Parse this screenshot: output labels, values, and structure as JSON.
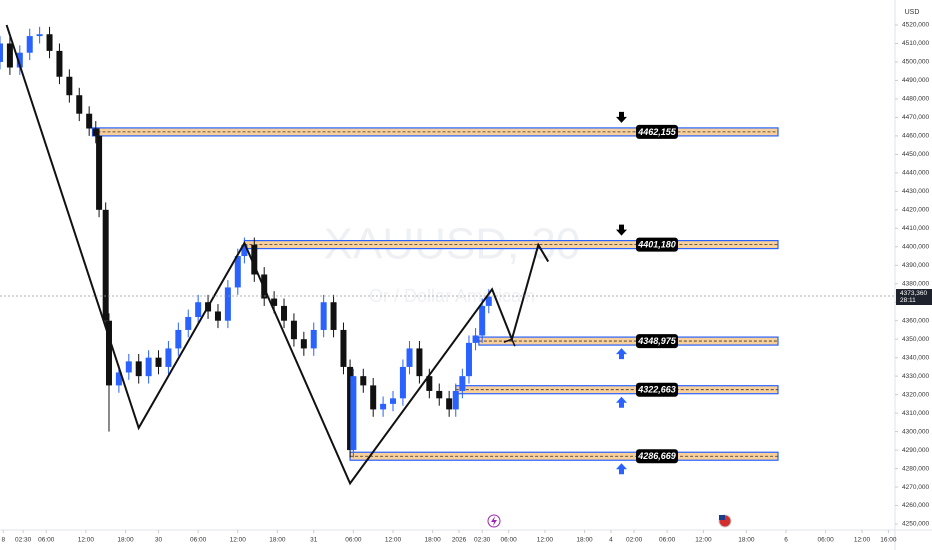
{
  "chart_data": {
    "type": "candlestick",
    "title": "XAUUSD, 30",
    "subtitle": "Or / Dollar Américain",
    "currency": "USD",
    "x": [
      0,
      3,
      6,
      9,
      12,
      15,
      18,
      21,
      24,
      27,
      29,
      30,
      32,
      33,
      36,
      39,
      42,
      45,
      48,
      51,
      54,
      57,
      60,
      63,
      66,
      69,
      72,
      74,
      77,
      80,
      83,
      86,
      89,
      92,
      95,
      98,
      101,
      104,
      106,
      107,
      110,
      113,
      116,
      119,
      122,
      124,
      127,
      130,
      133,
      136,
      138,
      140,
      142,
      144,
      146,
      148
    ],
    "open": [
      4500,
      4510,
      4497,
      4505,
      4514,
      4515,
      4506,
      4492,
      4482,
      4472,
      4464,
      4460,
      4420,
      4360,
      4325,
      4332,
      4338,
      4330,
      4340,
      4335,
      4345,
      4355,
      4362,
      4370,
      4365,
      4360,
      4378,
      4395,
      4401,
      4385,
      4372,
      4368,
      4360,
      4350,
      4345,
      4355,
      4370,
      4355,
      4335,
      4290,
      4330,
      4325,
      4312,
      4315,
      4318,
      4335,
      4345,
      4330,
      4322,
      4318,
      4312,
      4322,
      4330,
      4348,
      4352,
      4368
    ],
    "high": [
      4514,
      4514,
      4509,
      4518,
      4519,
      4519,
      4510,
      4496,
      4486,
      4476,
      4468,
      4464,
      4424,
      4364,
      4336,
      4342,
      4342,
      4344,
      4344,
      4349,
      4359,
      4366,
      4374,
      4374,
      4369,
      4382,
      4399,
      4405,
      4405,
      4389,
      4376,
      4372,
      4364,
      4354,
      4359,
      4374,
      4374,
      4359,
      4339,
      4334,
      4334,
      4329,
      4319,
      4322,
      4339,
      4349,
      4349,
      4334,
      4326,
      4322,
      4326,
      4334,
      4352,
      4356,
      4372,
      4377
    ],
    "low": [
      4496,
      4493,
      4493,
      4501,
      4510,
      4502,
      4488,
      4478,
      4468,
      4460,
      4456,
      4416,
      4356,
      4300,
      4321,
      4328,
      4326,
      4326,
      4331,
      4331,
      4341,
      4351,
      4358,
      4361,
      4356,
      4356,
      4374,
      4391,
      4381,
      4368,
      4364,
      4356,
      4346,
      4341,
      4341,
      4351,
      4351,
      4331,
      4286,
      4286,
      4321,
      4308,
      4308,
      4311,
      4314,
      4331,
      4326,
      4318,
      4314,
      4308,
      4308,
      4318,
      4326,
      4344,
      4348,
      4364
    ],
    "close": [
      4510,
      4497,
      4505,
      4514,
      4515,
      4506,
      4492,
      4482,
      4472,
      4464,
      4460,
      4420,
      4360,
      4325,
      4332,
      4338,
      4330,
      4340,
      4335,
      4345,
      4355,
      4362,
      4370,
      4365,
      4360,
      4378,
      4395,
      4401,
      4385,
      4372,
      4368,
      4360,
      4350,
      4345,
      4355,
      4370,
      4355,
      4335,
      4290,
      4330,
      4325,
      4312,
      4315,
      4318,
      4335,
      4345,
      4330,
      4322,
      4318,
      4312,
      4322,
      4330,
      4348,
      4352,
      4368,
      4373
    ],
    "up_color": "#2962ff",
    "down_color": "#111111",
    "xlim": [
      0,
      271
    ],
    "ylim": [
      4250,
      4520
    ],
    "xticks": [
      {
        "value": 1,
        "label": "8"
      },
      {
        "value": 7,
        "label": "02:30"
      },
      {
        "value": 14,
        "label": "06:00"
      },
      {
        "value": 26,
        "label": "12:00"
      },
      {
        "value": 38,
        "label": "18:00"
      },
      {
        "value": 48,
        "label": "30"
      },
      {
        "value": 60,
        "label": "06:00"
      },
      {
        "value": 72,
        "label": "12:00"
      },
      {
        "value": 84,
        "label": "18:00"
      },
      {
        "value": 95,
        "label": "31"
      },
      {
        "value": 107,
        "label": "06:00"
      },
      {
        "value": 119,
        "label": "12:00"
      },
      {
        "value": 131,
        "label": "18:00"
      },
      {
        "value": 139,
        "label": "2026"
      },
      {
        "value": 146,
        "label": "02:30"
      },
      {
        "value": 154,
        "label": "06:00"
      },
      {
        "value": 165,
        "label": "12:00"
      },
      {
        "value": 177,
        "label": "18:00"
      },
      {
        "value": 185,
        "label": "4"
      },
      {
        "value": 192,
        "label": "02:00"
      },
      {
        "value": 202,
        "label": "06:00"
      },
      {
        "value": 213,
        "label": "12:00"
      },
      {
        "value": 226,
        "label": "18:00"
      },
      {
        "value": 238,
        "label": "6"
      },
      {
        "value": 250,
        "label": "06:00"
      },
      {
        "value": 261,
        "label": "12:00"
      },
      {
        "value": 269,
        "label": "16:00"
      }
    ],
    "yticks": [
      {
        "value": 4250,
        "label": "4250,000"
      },
      {
        "value": 4260,
        "label": "4260,000"
      },
      {
        "value": 4270,
        "label": "4270,000"
      },
      {
        "value": 4280,
        "label": "4280,000"
      },
      {
        "value": 4290,
        "label": "4290,000"
      },
      {
        "value": 4300,
        "label": "4300,000"
      },
      {
        "value": 4310,
        "label": "4310,000"
      },
      {
        "value": 4320,
        "label": "4320,000"
      },
      {
        "value": 4330,
        "label": "4330,000"
      },
      {
        "value": 4340,
        "label": "4340,000"
      },
      {
        "value": 4350,
        "label": "4350,000"
      },
      {
        "value": 4360,
        "label": "4360,000"
      },
      {
        "value": 4370,
        "label": "4370,000"
      },
      {
        "value": 4380,
        "label": "4380,000"
      },
      {
        "value": 4390,
        "label": "4390,000"
      },
      {
        "value": 4400,
        "label": "4400,000"
      },
      {
        "value": 4410,
        "label": "4410,000"
      },
      {
        "value": 4420,
        "label": "4420,000"
      },
      {
        "value": 4430,
        "label": "4430,000"
      },
      {
        "value": 4440,
        "label": "4440,000"
      },
      {
        "value": 4450,
        "label": "4450,000"
      },
      {
        "value": 4460,
        "label": "4460,000"
      },
      {
        "value": 4470,
        "label": "4470,000"
      },
      {
        "value": 4480,
        "label": "4480,000"
      },
      {
        "value": 4490,
        "label": "4490,000"
      },
      {
        "value": 4500,
        "label": "4500,000"
      },
      {
        "value": 4510,
        "label": "4510,000"
      },
      {
        "value": 4520,
        "label": "4520,000"
      }
    ],
    "zigzag": {
      "color": "#111111",
      "x": [
        2,
        42,
        74,
        106,
        149,
        155,
        163,
        166
      ],
      "values": [
        4520,
        4302,
        4402,
        4272,
        4377,
        4350,
        4401,
        4392
      ]
    },
    "levels": [
      {
        "value": 4462.155,
        "label": "4462,155",
        "x": 28,
        "arrow": "down"
      },
      {
        "value": 4401.18,
        "label": "4401,180",
        "x": 74,
        "arrow": "down"
      },
      {
        "value": 4348.975,
        "label": "4348,975",
        "x": 145,
        "arrow": "up"
      },
      {
        "value": 4322.663,
        "label": "4322,663",
        "x": 138,
        "arrow": "up"
      },
      {
        "value": 4286.669,
        "label": "4286,669",
        "x": 106,
        "arrow": "up"
      }
    ],
    "last_price": {
      "value": 4373.36,
      "label": "4373,360",
      "countdown": "28:11"
    }
  }
}
